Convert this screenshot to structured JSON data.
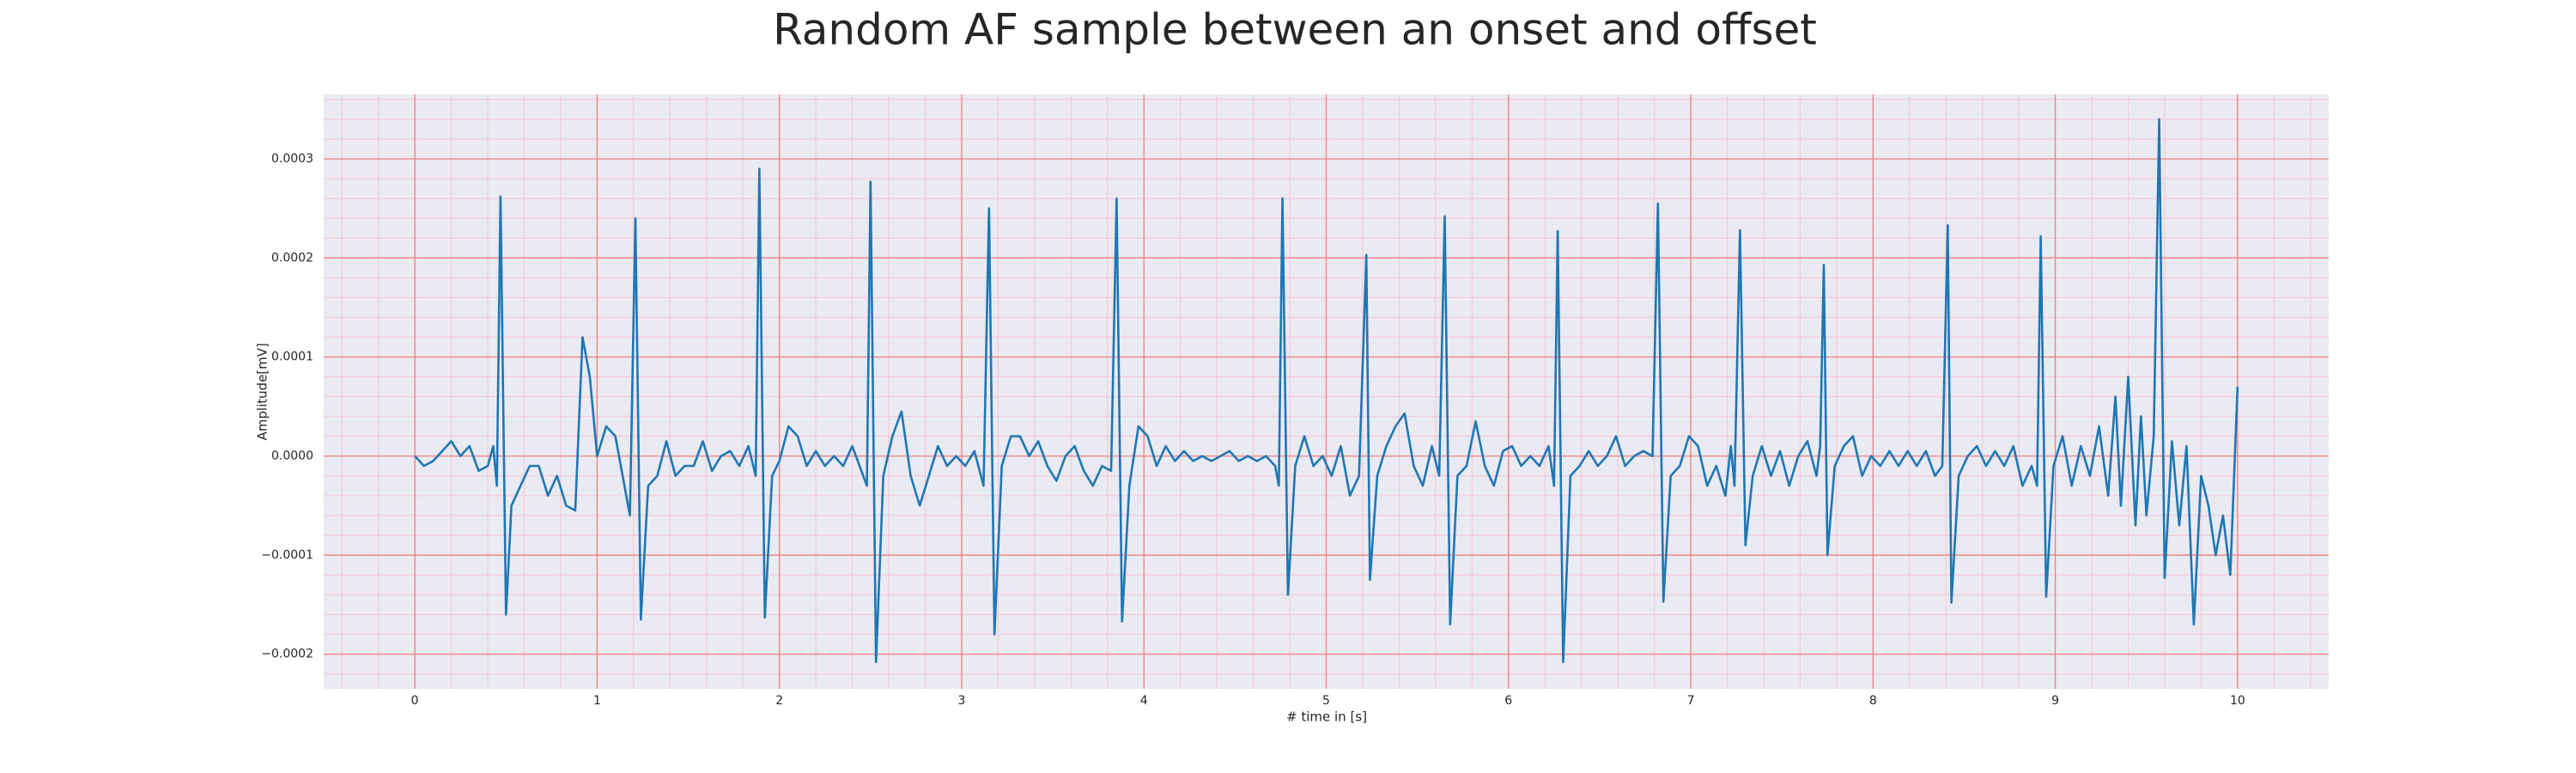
{
  "chart_data": {
    "type": "line",
    "title": "Random AF sample between an onset and offset",
    "x_label": "# time in [s]",
    "y_label": "Amplitude[mV]",
    "xlim": [
      -0.5,
      10.5
    ],
    "ylim": [
      -0.000235,
      0.000365
    ],
    "xticks": [
      0,
      1,
      2,
      3,
      4,
      5,
      6,
      7,
      8,
      9,
      10
    ],
    "yticks": [
      {
        "value": -0.0002,
        "label": "−0.0002"
      },
      {
        "value": -0.0001,
        "label": "−0.0001"
      },
      {
        "value": 0,
        "label": "0.0000"
      },
      {
        "value": 0.0001,
        "label": "0.0001"
      },
      {
        "value": 0.0002,
        "label": "0.0002"
      },
      {
        "value": 0.0003,
        "label": "0.0003"
      }
    ],
    "grid": true,
    "minor_grid": true,
    "background": "#eaeaf2",
    "grid_color": "#f08080",
    "minor_grid_color": "#f5c6d0",
    "x": [
      0,
      0.05,
      0.1,
      0.15,
      0.2,
      0.25,
      0.3,
      0.35,
      0.4,
      0.43,
      0.45,
      0.47,
      0.5,
      0.53,
      0.58,
      0.63,
      0.68,
      0.73,
      0.78,
      0.83,
      0.88,
      0.92,
      0.96,
      1.0,
      1.05,
      1.1,
      1.15,
      1.18,
      1.21,
      1.24,
      1.28,
      1.33,
      1.38,
      1.43,
      1.48,
      1.53,
      1.58,
      1.63,
      1.68,
      1.73,
      1.78,
      1.83,
      1.87,
      1.89,
      1.92,
      1.96,
      2.0,
      2.05,
      2.1,
      2.15,
      2.2,
      2.25,
      2.3,
      2.35,
      2.4,
      2.45,
      2.48,
      2.5,
      2.53,
      2.57,
      2.62,
      2.67,
      2.72,
      2.77,
      2.82,
      2.87,
      2.92,
      2.97,
      3.02,
      3.07,
      3.12,
      3.15,
      3.18,
      3.22,
      3.27,
      3.32,
      3.37,
      3.42,
      3.47,
      3.52,
      3.57,
      3.62,
      3.67,
      3.72,
      3.77,
      3.82,
      3.85,
      3.88,
      3.92,
      3.97,
      4.02,
      4.07,
      4.12,
      4.17,
      4.22,
      4.27,
      4.32,
      4.37,
      4.42,
      4.47,
      4.52,
      4.57,
      4.62,
      4.67,
      4.72,
      4.74,
      4.76,
      4.79,
      4.83,
      4.88,
      4.93,
      4.98,
      5.03,
      5.08,
      5.13,
      5.18,
      5.22,
      5.24,
      5.28,
      5.33,
      5.38,
      5.43,
      5.48,
      5.53,
      5.58,
      5.62,
      5.65,
      5.68,
      5.72,
      5.77,
      5.82,
      5.87,
      5.92,
      5.97,
      6.02,
      6.07,
      6.12,
      6.17,
      6.22,
      6.25,
      6.27,
      6.3,
      6.34,
      6.39,
      6.44,
      6.49,
      6.54,
      6.59,
      6.64,
      6.69,
      6.74,
      6.79,
      6.82,
      6.85,
      6.89,
      6.94,
      6.99,
      7.04,
      7.09,
      7.14,
      7.19,
      7.22,
      7.24,
      7.27,
      7.3,
      7.34,
      7.39,
      7.44,
      7.49,
      7.54,
      7.59,
      7.64,
      7.69,
      7.71,
      7.73,
      7.75,
      7.79,
      7.84,
      7.89,
      7.94,
      7.99,
      8.04,
      8.09,
      8.14,
      8.19,
      8.24,
      8.29,
      8.34,
      8.38,
      8.41,
      8.43,
      8.47,
      8.52,
      8.57,
      8.62,
      8.67,
      8.72,
      8.77,
      8.82,
      8.87,
      8.9,
      8.92,
      8.95,
      8.99,
      9.04,
      9.09,
      9.14,
      9.19,
      9.24,
      9.29,
      9.33,
      9.36,
      9.4,
      9.44,
      9.47,
      9.5,
      9.54,
      9.57,
      9.6,
      9.64,
      9.68,
      9.72,
      9.76,
      9.8,
      9.84,
      9.88,
      9.92,
      9.96,
      10.0
    ],
    "series": [
      {
        "color": "#1f77b4",
        "values": [
          0.0,
          -1e-05,
          -5e-06,
          5e-06,
          1.5e-05,
          0.0,
          1e-05,
          -1.5e-05,
          -1e-05,
          1e-05,
          -3e-05,
          0.000262,
          -0.00016,
          -5e-05,
          -3e-05,
          -1e-05,
          -1e-05,
          -4e-05,
          -2e-05,
          -5e-05,
          -5.5e-05,
          0.00012,
          8e-05,
          0.0,
          3e-05,
          2e-05,
          -3e-05,
          -6e-05,
          0.00024,
          -0.000165,
          -3e-05,
          -2e-05,
          1.5e-05,
          -2e-05,
          -1e-05,
          -1e-05,
          1.5e-05,
          -1.5e-05,
          0.0,
          5e-06,
          -1e-05,
          1e-05,
          -2e-05,
          0.00029,
          -0.000163,
          -2e-05,
          -5e-06,
          3e-05,
          2e-05,
          -1e-05,
          5e-06,
          -1e-05,
          0.0,
          -1e-05,
          1e-05,
          -1.5e-05,
          -3e-05,
          0.000277,
          -0.000208,
          -2e-05,
          2e-05,
          4.5e-05,
          -2e-05,
          -5e-05,
          -2e-05,
          1e-05,
          -1e-05,
          0.0,
          -1e-05,
          5e-06,
          -3e-05,
          0.00025,
          -0.00018,
          -1e-05,
          2e-05,
          2e-05,
          0.0,
          1.5e-05,
          -1e-05,
          -2.5e-05,
          0.0,
          1e-05,
          -1.5e-05,
          -3e-05,
          -1e-05,
          -1.5e-05,
          0.00026,
          -0.000167,
          -3e-05,
          3e-05,
          2e-05,
          -1e-05,
          1e-05,
          -5e-06,
          5e-06,
          -5e-06,
          0.0,
          -5e-06,
          0.0,
          5e-06,
          -5e-06,
          0.0,
          -5e-06,
          0.0,
          -1e-05,
          -3e-05,
          0.00026,
          -0.00014,
          -1e-05,
          2e-05,
          -1e-05,
          0.0,
          -2e-05,
          1e-05,
          -4e-05,
          -2e-05,
          0.000203,
          -0.000125,
          -2e-05,
          1e-05,
          3e-05,
          4.3e-05,
          -1e-05,
          -3e-05,
          1e-05,
          -2e-05,
          0.000242,
          -0.00017,
          -2e-05,
          -1e-05,
          3.5e-05,
          -1e-05,
          -3e-05,
          5e-06,
          1e-05,
          -1e-05,
          0.0,
          -1e-05,
          1e-05,
          -3e-05,
          0.000227,
          -0.000208,
          -2e-05,
          -1e-05,
          5e-06,
          -1e-05,
          0.0,
          2e-05,
          -1e-05,
          0.0,
          5e-06,
          0.0,
          0.000255,
          -0.000147,
          -2e-05,
          -1e-05,
          2e-05,
          1e-05,
          -3e-05,
          -1e-05,
          -4e-05,
          1e-05,
          -3e-05,
          0.000228,
          -9e-05,
          -2e-05,
          1e-05,
          -2e-05,
          5e-06,
          -3e-05,
          0.0,
          1.5e-05,
          -2e-05,
          1e-05,
          0.000193,
          -0.0001,
          -1e-05,
          1e-05,
          2e-05,
          -2e-05,
          0.0,
          -1e-05,
          5e-06,
          -1e-05,
          5e-06,
          -1e-05,
          5e-06,
          -2e-05,
          -1e-05,
          0.000233,
          -0.000148,
          -2e-05,
          0.0,
          1e-05,
          -1e-05,
          5e-06,
          -1e-05,
          1e-05,
          -3e-05,
          -1e-05,
          -3e-05,
          0.000222,
          -0.000142,
          -1e-05,
          2e-05,
          -3e-05,
          1e-05,
          -2e-05,
          3e-05,
          -4e-05,
          6e-05,
          -5e-05,
          8e-05,
          -7e-05,
          4e-05,
          -6e-05,
          2e-05,
          0.00034,
          -0.000123,
          1.5e-05,
          -7e-05,
          1e-05,
          -0.00017,
          -2e-05,
          -5e-05,
          -0.0001,
          -6e-05,
          -0.00012,
          7e-05
        ]
      }
    ]
  }
}
